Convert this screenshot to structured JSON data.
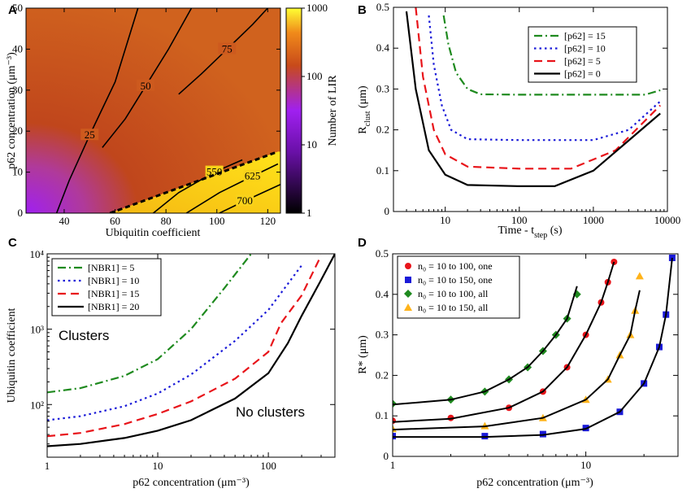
{
  "figure": {
    "colors": {
      "green": "#1f8a1f",
      "blue": "#1a1ad8",
      "red": "#e8141a",
      "black": "#000000",
      "orange": "#ffb31a",
      "cmap_top": "#ffff33",
      "cmap_mid": "#c84a1a",
      "cmap_low": "#a020f0",
      "cmap_bottom": "#000000"
    }
  },
  "chart_data": [
    {
      "panel": "A",
      "type": "heatmap",
      "xlabel": "Ubiquitin coefficient",
      "ylabel": "p62 concentration (μm⁻³)",
      "xlim": [
        25,
        125
      ],
      "ylim": [
        0,
        50
      ],
      "xticks": [
        "40",
        "60",
        "80",
        "100",
        "120"
      ],
      "yticks": [
        "0",
        "10",
        "20",
        "30",
        "40",
        "50"
      ],
      "colorbar": {
        "label": "Number of LIR",
        "ticks": [
          "1",
          "10",
          "100",
          "1000"
        ],
        "scale": "log",
        "range": [
          1,
          1000
        ]
      },
      "contours": [
        {
          "label": "25",
          "points": [
            [
              37,
              0
            ],
            [
              42,
              8
            ],
            [
              50,
              19
            ],
            [
              60,
              32
            ],
            [
              69,
              50
            ]
          ]
        },
        {
          "label": "50",
          "points": [
            [
              55,
              16
            ],
            [
              64,
              23
            ],
            [
              72,
              31
            ],
            [
              81,
              40
            ],
            [
              90,
              50
            ]
          ]
        },
        {
          "label": "75",
          "points": [
            [
              85,
              29
            ],
            [
              94,
              34
            ],
            [
              104,
              40
            ],
            [
              114,
              46
            ],
            [
              120,
              50
            ]
          ]
        },
        {
          "label": "550",
          "points": [
            [
              75,
              0
            ],
            [
              85,
              5
            ],
            [
              99,
              10
            ],
            [
              110,
              13
            ]
          ]
        },
        {
          "label": "625",
          "points": [
            [
              88,
              0
            ],
            [
              101,
              5
            ],
            [
              114,
              9
            ],
            [
              124,
              12
            ]
          ]
        },
        {
          "label": "700",
          "points": [
            [
              101,
              0
            ],
            [
              111,
              3
            ],
            [
              125,
              7
            ]
          ]
        }
      ],
      "boundary": [
        [
          58,
          0
        ],
        [
          124,
          15
        ]
      ]
    },
    {
      "panel": "B",
      "type": "line",
      "xlabel": "Time - t",
      "xlabel_sub": "step",
      "xlabel_unit": " (s)",
      "ylabel": "R",
      "ylabel_sub": "clust",
      "ylabel_unit": " (μm)",
      "xscale": "log",
      "xlim": [
        2,
        10000
      ],
      "ylim": [
        0,
        0.5
      ],
      "xticks": [
        "10",
        "100",
        "1000",
        "10000"
      ],
      "yticks": [
        "0",
        "0.1",
        "0.2",
        "0.3",
        "0.4",
        "0.5"
      ],
      "legend_position": "top-right",
      "series": [
        {
          "name": "[p62] = 15",
          "style": "dashdot",
          "color": "green",
          "x": [
            9.5,
            11,
            14,
            20,
            30,
            100,
            1000,
            5000,
            8000
          ],
          "y": [
            0.48,
            0.41,
            0.34,
            0.3,
            0.287,
            0.286,
            0.286,
            0.286,
            0.297
          ]
        },
        {
          "name": "[p62] = 10",
          "style": "dotted",
          "color": "blue",
          "x": [
            6,
            7,
            9,
            12,
            20,
            100,
            1000,
            3000,
            8000
          ],
          "y": [
            0.48,
            0.36,
            0.26,
            0.2,
            0.177,
            0.175,
            0.175,
            0.2,
            0.27
          ]
        },
        {
          "name": "[p62] = 5",
          "style": "dashed",
          "color": "red",
          "x": [
            4,
            5,
            7,
            10,
            20,
            100,
            500,
            2000,
            8000
          ],
          "y": [
            0.5,
            0.33,
            0.2,
            0.14,
            0.11,
            0.105,
            0.105,
            0.15,
            0.26
          ]
        },
        {
          "name": "[p62] = 0",
          "style": "solid",
          "color": "black",
          "x": [
            3,
            4,
            6,
            10,
            20,
            100,
            300,
            1000,
            8000
          ],
          "y": [
            0.49,
            0.3,
            0.15,
            0.09,
            0.065,
            0.062,
            0.062,
            0.1,
            0.24
          ]
        }
      ]
    },
    {
      "panel": "C",
      "type": "line",
      "xlabel": "p62 concentration (μm⁻³)",
      "ylabel": "Ubiquitin coefficient",
      "xscale": "log",
      "yscale": "log",
      "xlim": [
        1,
        400
      ],
      "ylim": [
        20,
        10000
      ],
      "xticks": [
        "1",
        "10",
        "100"
      ],
      "yticks": [
        "10²",
        "10³",
        "10⁴"
      ],
      "legend_position": "top-left",
      "annotations": [
        "Clusters",
        "No clusters"
      ],
      "series": [
        {
          "name": "[NBR1] = 5",
          "style": "dashdot",
          "color": "green",
          "x": [
            1,
            2,
            5,
            10,
            20,
            40,
            70
          ],
          "y": [
            145,
            165,
            240,
            400,
            1000,
            3500,
            10000
          ]
        },
        {
          "name": "[NBR1] = 10",
          "style": "dotted",
          "color": "blue",
          "x": [
            1,
            2,
            5,
            10,
            20,
            50,
            100,
            200
          ],
          "y": [
            62,
            70,
            95,
            140,
            250,
            700,
            1800,
            7000
          ]
        },
        {
          "name": "[NBR1] = 15",
          "style": "dashed",
          "color": "red",
          "x": [
            1,
            2,
            5,
            10,
            20,
            50,
            100,
            130,
            200,
            300
          ],
          "y": [
            38,
            42,
            55,
            75,
            110,
            220,
            500,
            1200,
            2800,
            9500
          ]
        },
        {
          "name": "[NBR1] = 20",
          "style": "solid",
          "color": "black",
          "x": [
            1,
            2,
            5,
            10,
            20,
            50,
            100,
            150,
            200,
            300,
            400
          ],
          "y": [
            28,
            30,
            36,
            45,
            62,
            120,
            260,
            650,
            1500,
            4500,
            10000
          ]
        }
      ]
    },
    {
      "panel": "D",
      "type": "scatter",
      "xlabel": "p62 concentration (μm⁻³)",
      "ylabel": "R* (μm)",
      "xscale": "log",
      "xlim": [
        1,
        30
      ],
      "ylim": [
        0,
        0.5
      ],
      "xticks": [
        "1",
        "10"
      ],
      "yticks": [
        "0",
        "0.1",
        "0.2",
        "0.3",
        "0.4",
        "0.5"
      ],
      "legend_position": "top-left",
      "series": [
        {
          "name": "n₀ = 10 to 100, one",
          "marker": "circle",
          "color": "red",
          "x": [
            1,
            2,
            4,
            6,
            8,
            10,
            12,
            13,
            14
          ],
          "y": [
            0.088,
            0.095,
            0.12,
            0.16,
            0.22,
            0.3,
            0.38,
            0.43,
            0.48
          ]
        },
        {
          "name": "n₀ = 10 to 150, one",
          "marker": "square",
          "color": "blue",
          "x": [
            1,
            3,
            6,
            10,
            15,
            20,
            24,
            26,
            28
          ],
          "y": [
            0.05,
            0.05,
            0.055,
            0.07,
            0.11,
            0.18,
            0.27,
            0.35,
            0.49
          ]
        },
        {
          "name": "n₀ = 10 to 100, all",
          "marker": "diamond",
          "color": "green",
          "x": [
            1,
            2,
            3,
            4,
            5,
            6,
            7,
            8,
            9
          ],
          "y": [
            0.13,
            0.14,
            0.16,
            0.19,
            0.22,
            0.26,
            0.3,
            0.34,
            0.4
          ]
        },
        {
          "name": "n₀ = 10 to 150, all",
          "marker": "triangle",
          "color": "orange",
          "x": [
            1,
            3,
            6,
            10,
            13,
            15,
            17,
            18,
            19
          ],
          "y": [
            0.068,
            0.075,
            0.095,
            0.14,
            0.19,
            0.25,
            0.3,
            0.36,
            0.445
          ]
        }
      ],
      "fits": [
        {
          "x": [
            1,
            2,
            4,
            6,
            8,
            10,
            12,
            13,
            14
          ],
          "y": [
            0.085,
            0.093,
            0.12,
            0.16,
            0.22,
            0.3,
            0.38,
            0.43,
            0.48
          ]
        },
        {
          "x": [
            1,
            3,
            6,
            10,
            15,
            20,
            24,
            26,
            28
          ],
          "y": [
            0.048,
            0.048,
            0.053,
            0.068,
            0.11,
            0.18,
            0.27,
            0.35,
            0.49
          ]
        },
        {
          "x": [
            1,
            2,
            3,
            4,
            5,
            6,
            7,
            8,
            9
          ],
          "y": [
            0.128,
            0.14,
            0.16,
            0.19,
            0.22,
            0.26,
            0.3,
            0.34,
            0.42
          ]
        },
        {
          "x": [
            1,
            3,
            6,
            10,
            13,
            15,
            17,
            18,
            19
          ],
          "y": [
            0.066,
            0.074,
            0.095,
            0.14,
            0.19,
            0.25,
            0.3,
            0.36,
            0.41
          ]
        }
      ]
    }
  ]
}
